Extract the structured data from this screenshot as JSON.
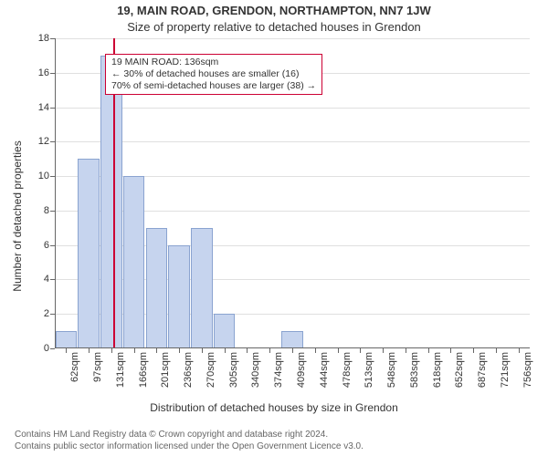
{
  "header": {
    "title": "19, MAIN ROAD, GRENDON, NORTHAMPTON, NN7 1JW",
    "subtitle": "Size of property relative to detached houses in Grendon"
  },
  "chart": {
    "type": "histogram",
    "xlabel": "Distribution of detached houses by size in Grendon",
    "ylabel": "Number of detached properties",
    "background_color": "#ffffff",
    "grid_color": "#e0e0e0",
    "axis_color": "#666666",
    "label_fontsize": 12,
    "tick_fontsize": 11,
    "ylim": [
      0,
      18
    ],
    "ytick_step": 2,
    "bar_fill": "#c6d4ee",
    "bar_border": "#8aa3d0",
    "bar_width": 0.95,
    "marker_color": "#cc0033",
    "marker_value": 136,
    "x_bin_start": 45,
    "x_bin_width": 34.67,
    "x_tick_labels": [
      "62sqm",
      "97sqm",
      "131sqm",
      "166sqm",
      "201sqm",
      "236sqm",
      "270sqm",
      "305sqm",
      "340sqm",
      "374sqm",
      "409sqm",
      "444sqm",
      "478sqm",
      "513sqm",
      "548sqm",
      "583sqm",
      "618sqm",
      "652sqm",
      "687sqm",
      "721sqm",
      "756sqm"
    ],
    "values": [
      1,
      11,
      17,
      10,
      7,
      6,
      7,
      2,
      0,
      0,
      1,
      0,
      0,
      0,
      0,
      0,
      0,
      0,
      0,
      0,
      0
    ],
    "info_box": {
      "border_color": "#cc0033",
      "line1": "19 MAIN ROAD: 136sqm",
      "line2": "← 30% of detached houses are smaller (16)",
      "line3": "70% of semi-detached houses are larger (38) →"
    }
  },
  "attribution": {
    "line1": "Contains HM Land Registry data © Crown copyright and database right 2024.",
    "line2": "Contains public sector information licensed under the Open Government Licence v3.0."
  }
}
